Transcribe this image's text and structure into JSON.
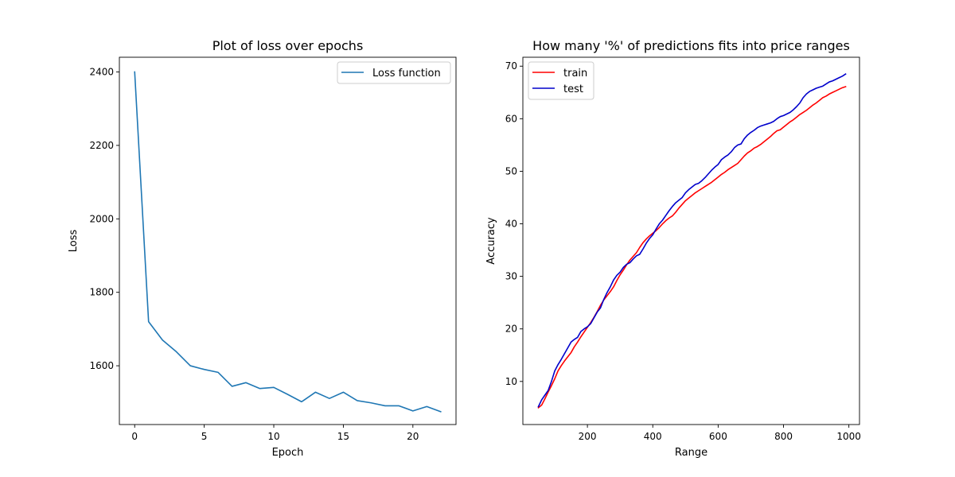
{
  "chart_data": [
    {
      "type": "line",
      "title": "Plot of loss over epochs",
      "xlabel": "Epoch",
      "ylabel": "Loss",
      "xlim": [
        -1.1,
        23.1
      ],
      "ylim": [
        1440,
        2440
      ],
      "xticks": [
        0,
        5,
        10,
        15,
        20
      ],
      "yticks": [
        1600,
        1800,
        2000,
        2200,
        2400
      ],
      "grid": false,
      "legend": "top-right",
      "series": [
        {
          "name": "Loss function",
          "color": "#1f77b4",
          "x": [
            0,
            1,
            2,
            3,
            4,
            5,
            6,
            7,
            8,
            9,
            10,
            11,
            12,
            13,
            14,
            15,
            16,
            17,
            18,
            19,
            20,
            21,
            22
          ],
          "y": [
            2400,
            1720,
            1670,
            1638,
            1600,
            1590,
            1582,
            1544,
            1554,
            1538,
            1541,
            1522,
            1502,
            1528,
            1511,
            1528,
            1505,
            1499,
            1491,
            1491,
            1477,
            1489,
            1475
          ]
        }
      ]
    },
    {
      "type": "line",
      "title": "How many '%' of predictions fits into price ranges",
      "xlabel": "Range",
      "ylabel": "Accuracy",
      "xlim": [
        2.5,
        1032.5
      ],
      "ylim": [
        1.8,
        71.7
      ],
      "xticks": [
        200,
        400,
        600,
        800,
        1000
      ],
      "yticks": [
        10,
        20,
        30,
        40,
        50,
        60,
        70
      ],
      "grid": false,
      "legend": "top-left",
      "series": [
        {
          "name": "train",
          "color": "#ff0000",
          "x": [
            50,
            60,
            70,
            80,
            90,
            100,
            110,
            120,
            130,
            140,
            150,
            160,
            170,
            180,
            190,
            200,
            210,
            220,
            230,
            240,
            250,
            260,
            270,
            280,
            290,
            300,
            310,
            320,
            330,
            340,
            350,
            360,
            370,
            380,
            390,
            400,
            410,
            420,
            430,
            440,
            450,
            460,
            470,
            480,
            490,
            500,
            510,
            520,
            530,
            540,
            550,
            560,
            570,
            580,
            590,
            600,
            610,
            620,
            630,
            640,
            650,
            660,
            670,
            680,
            690,
            700,
            710,
            720,
            730,
            740,
            750,
            760,
            770,
            780,
            790,
            800,
            810,
            820,
            830,
            840,
            850,
            860,
            870,
            880,
            890,
            900,
            910,
            920,
            930,
            940,
            950,
            960,
            970,
            980,
            990
          ],
          "y": [
            5.0,
            5.5,
            6.7,
            8.0,
            9.2,
            10.5,
            12.0,
            13.0,
            13.9,
            14.7,
            15.5,
            16.6,
            17.5,
            18.5,
            19.4,
            20.3,
            21.2,
            22.2,
            23.3,
            24.5,
            25.5,
            26.3,
            27.1,
            28.0,
            29.2,
            30.3,
            31.2,
            32.2,
            33.1,
            33.8,
            34.5,
            35.5,
            36.4,
            37.1,
            37.7,
            38.2,
            38.7,
            39.3,
            40.0,
            40.6,
            41.1,
            41.5,
            42.2,
            43.0,
            43.7,
            44.4,
            44.9,
            45.4,
            45.9,
            46.3,
            46.7,
            47.1,
            47.5,
            47.9,
            48.4,
            48.9,
            49.4,
            49.8,
            50.3,
            50.7,
            51.1,
            51.5,
            52.2,
            52.9,
            53.5,
            53.9,
            54.4,
            54.7,
            55.1,
            55.6,
            56.1,
            56.6,
            57.2,
            57.7,
            57.9,
            58.4,
            58.9,
            59.4,
            59.8,
            60.3,
            60.8,
            61.2,
            61.6,
            62.1,
            62.6,
            63.0,
            63.5,
            64.0,
            64.3,
            64.7,
            65.0,
            65.3,
            65.6,
            65.9,
            66.1
          ]
        },
        {
          "name": "test",
          "color": "#0000cc",
          "x": [
            50,
            60,
            70,
            80,
            90,
            100,
            110,
            120,
            130,
            140,
            150,
            160,
            170,
            180,
            190,
            200,
            210,
            220,
            230,
            240,
            250,
            260,
            270,
            280,
            290,
            300,
            310,
            320,
            330,
            340,
            350,
            360,
            370,
            380,
            390,
            400,
            410,
            420,
            430,
            440,
            450,
            460,
            470,
            480,
            490,
            500,
            510,
            520,
            530,
            540,
            550,
            560,
            570,
            580,
            590,
            600,
            610,
            620,
            630,
            640,
            650,
            660,
            670,
            680,
            690,
            700,
            710,
            720,
            730,
            740,
            750,
            760,
            770,
            780,
            790,
            800,
            810,
            820,
            830,
            840,
            850,
            860,
            870,
            880,
            890,
            900,
            910,
            920,
            930,
            940,
            950,
            960,
            970,
            980,
            990
          ],
          "y": [
            5.2,
            6.5,
            7.4,
            8.3,
            10.0,
            12.0,
            13.2,
            14.2,
            15.3,
            16.4,
            17.5,
            18.0,
            18.4,
            19.5,
            20.0,
            20.4,
            21.0,
            22.1,
            23.2,
            24.0,
            25.6,
            26.9,
            28.0,
            29.3,
            30.2,
            30.8,
            31.7,
            32.3,
            32.6,
            33.3,
            33.9,
            34.2,
            35.2,
            36.3,
            37.2,
            37.9,
            39.0,
            40.0,
            40.7,
            41.6,
            42.5,
            43.3,
            44.0,
            44.5,
            45.0,
            45.9,
            46.5,
            47.0,
            47.5,
            47.7,
            48.2,
            48.8,
            49.5,
            50.2,
            50.8,
            51.3,
            52.2,
            52.7,
            53.1,
            53.7,
            54.5,
            55.0,
            55.2,
            56.2,
            56.9,
            57.4,
            57.8,
            58.3,
            58.6,
            58.8,
            59.0,
            59.2,
            59.5,
            60.0,
            60.4,
            60.6,
            60.9,
            61.2,
            61.7,
            62.3,
            63.0,
            64.0,
            64.7,
            65.2,
            65.5,
            65.8,
            66.0,
            66.2,
            66.6,
            67.0,
            67.2,
            67.5,
            67.8,
            68.1,
            68.5
          ]
        }
      ]
    }
  ]
}
